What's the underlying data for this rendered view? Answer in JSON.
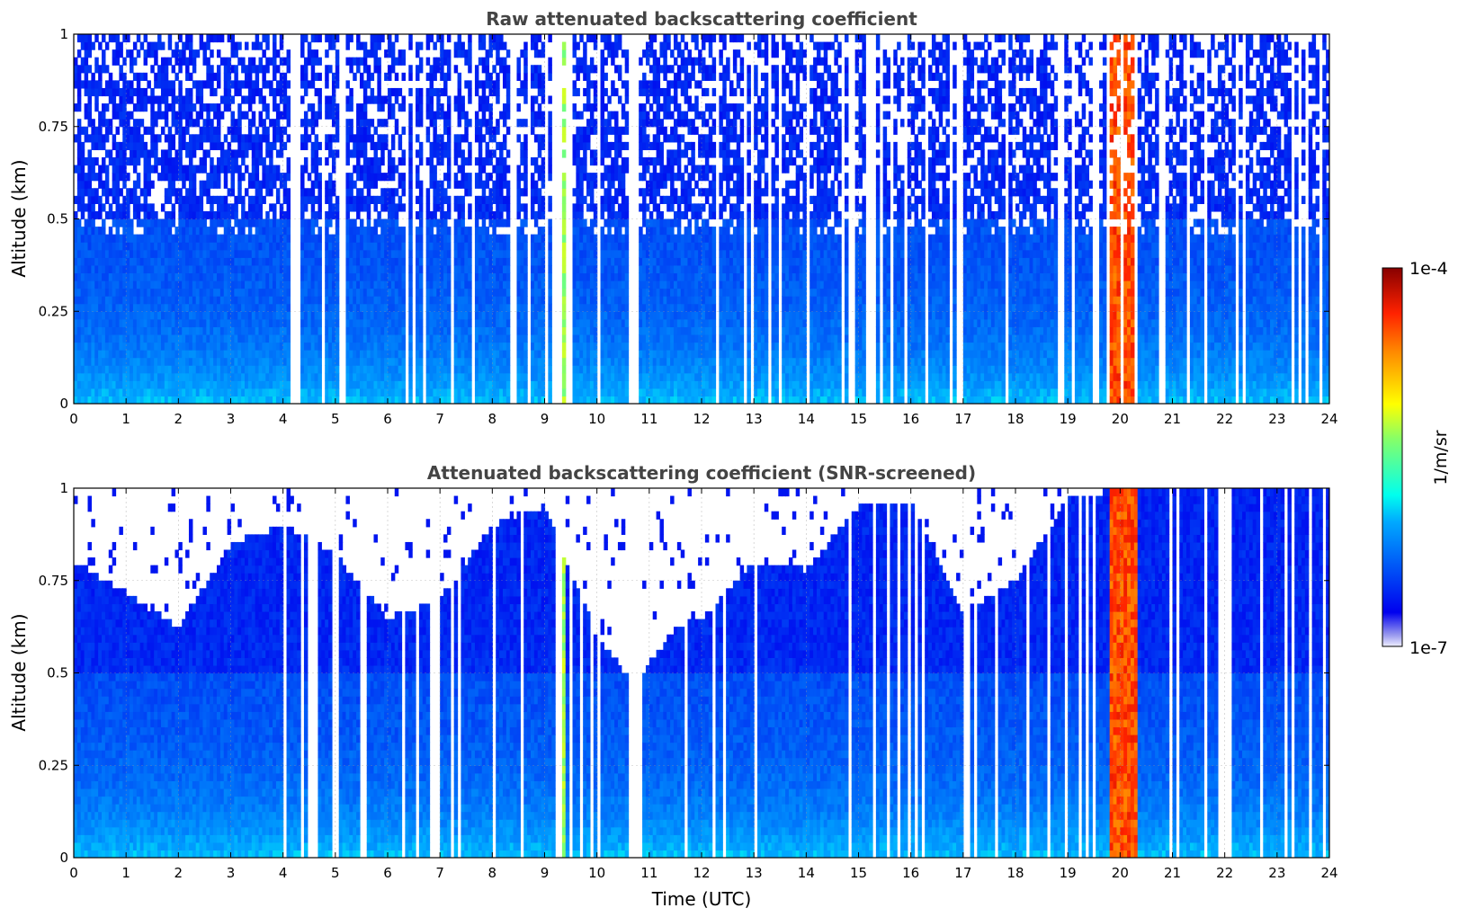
{
  "chart_data": [
    {
      "type": "heatmap",
      "title": "Raw attenuated backscattering coefficient",
      "xlabel": "",
      "ylabel": "Altitude (km)",
      "xlim": [
        0,
        24
      ],
      "ylim": [
        0,
        1
      ],
      "x_ticks": [
        0,
        1,
        2,
        3,
        4,
        5,
        6,
        7,
        8,
        9,
        10,
        11,
        12,
        13,
        14,
        15,
        16,
        17,
        18,
        19,
        20,
        21,
        22,
        23,
        24
      ],
      "y_ticks": [
        0,
        0.25,
        0.5,
        0.75,
        1
      ],
      "y_tick_labels": [
        "0",
        "0.25",
        "0.5",
        "0.75",
        "1"
      ],
      "grid": true,
      "screened": false
    },
    {
      "type": "heatmap",
      "title": "Attenuated backscattering coefficient (SNR-screened)",
      "xlabel": "Time (UTC)",
      "ylabel": "Altitude (km)",
      "xlim": [
        0,
        24
      ],
      "ylim": [
        0,
        1
      ],
      "x_ticks": [
        0,
        1,
        2,
        3,
        4,
        5,
        6,
        7,
        8,
        9,
        10,
        11,
        12,
        13,
        14,
        15,
        16,
        17,
        18,
        19,
        20,
        21,
        22,
        23,
        24
      ],
      "y_ticks": [
        0,
        0.25,
        0.5,
        0.75,
        1
      ],
      "y_tick_labels": [
        "0",
        "0.25",
        "0.5",
        "0.75",
        "1"
      ],
      "grid": true,
      "screened": true
    }
  ],
  "colorbar": {
    "label": "1/m/sr",
    "min_label": "1e-7",
    "max_label": "1e-4",
    "colormap": "jet"
  },
  "features": {
    "high_backscatter_band_hours": [
      19.8,
      20.3
    ],
    "moderate_backscatter_band_hours": [
      9.2,
      9.4
    ],
    "screened_cloud_top_km": [
      [
        0,
        0.8
      ],
      [
        1,
        0.72
      ],
      [
        2,
        0.62
      ],
      [
        3,
        0.85
      ],
      [
        4,
        0.9
      ],
      [
        5,
        0.82
      ],
      [
        6,
        0.65
      ],
      [
        7,
        0.7
      ],
      [
        8,
        0.9
      ],
      [
        9,
        0.95
      ],
      [
        10,
        0.6
      ],
      [
        10.7,
        0.47
      ],
      [
        11.5,
        0.62
      ],
      [
        12,
        0.65
      ],
      [
        13,
        0.8
      ],
      [
        14,
        0.78
      ],
      [
        15,
        0.95
      ],
      [
        16,
        0.96
      ],
      [
        17,
        0.65
      ],
      [
        18,
        0.75
      ],
      [
        19,
        0.97
      ],
      [
        20,
        1.0
      ],
      [
        24,
        1.0
      ]
    ]
  }
}
